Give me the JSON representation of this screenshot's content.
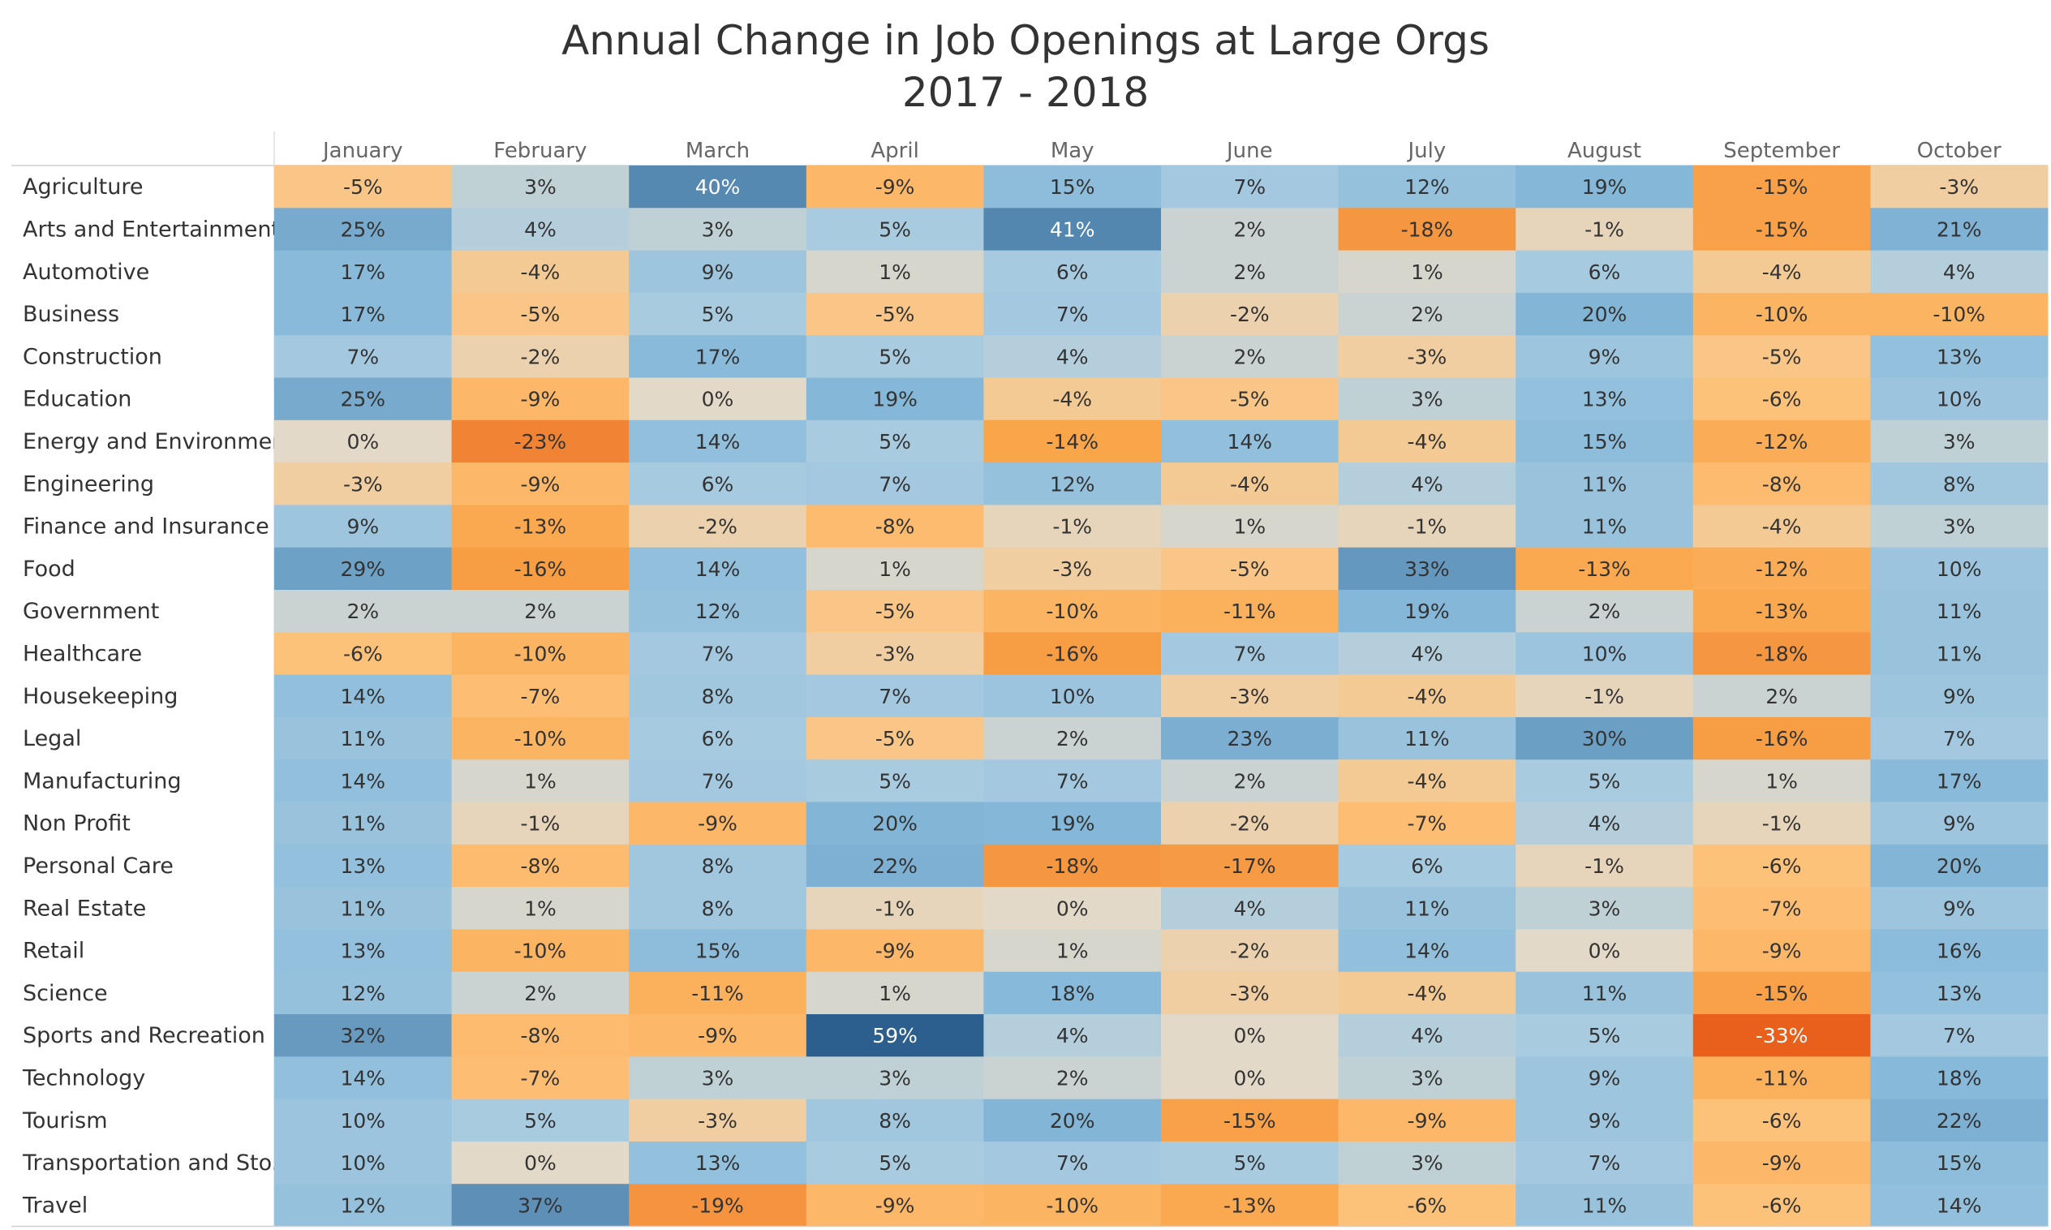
{
  "title": "Annual Change in Job Openings at Large Orgs",
  "subtitle": "2017 - 2018",
  "chart_data": {
    "type": "heatmap",
    "title": "Annual Change in Job Openings at Large Orgs",
    "subtitle": "2017 - 2018",
    "value_format": "percent",
    "color_scale": {
      "negative_strong": "#e8601c",
      "negative_mid": "#f9a54a",
      "negative_light": "#fdc27a",
      "neutral": "#e2d9c8",
      "positive_light": "#a9cbe0",
      "positive_mid": "#86b9da",
      "positive_strong": "#2d5f8e",
      "text_default": "#333333",
      "text_on_dark": "#ffffff"
    },
    "columns": [
      "January",
      "February",
      "March",
      "April",
      "May",
      "June",
      "July",
      "August",
      "September",
      "October"
    ],
    "rows": [
      {
        "name": "Agriculture",
        "values": [
          -5,
          3,
          40,
          -9,
          15,
          7,
          12,
          19,
          -15,
          -3
        ]
      },
      {
        "name": "Arts and Entertainment",
        "values": [
          25,
          4,
          3,
          5,
          41,
          2,
          -18,
          -1,
          -15,
          21
        ]
      },
      {
        "name": "Automotive",
        "values": [
          17,
          -4,
          9,
          1,
          6,
          2,
          1,
          6,
          -4,
          4
        ]
      },
      {
        "name": "Business",
        "values": [
          17,
          -5,
          5,
          -5,
          7,
          -2,
          2,
          20,
          -10,
          -10
        ]
      },
      {
        "name": "Construction",
        "values": [
          7,
          -2,
          17,
          5,
          4,
          2,
          -3,
          9,
          -5,
          13
        ]
      },
      {
        "name": "Education",
        "values": [
          25,
          -9,
          0,
          19,
          -4,
          -5,
          3,
          13,
          -6,
          10
        ]
      },
      {
        "name": "Energy and Environment",
        "values": [
          0,
          -23,
          14,
          5,
          -14,
          14,
          -4,
          15,
          -12,
          3
        ]
      },
      {
        "name": "Engineering",
        "values": [
          -3,
          -9,
          6,
          7,
          12,
          -4,
          4,
          11,
          -8,
          8
        ]
      },
      {
        "name": "Finance and Insurance",
        "values": [
          9,
          -13,
          -2,
          -8,
          -1,
          1,
          -1,
          11,
          -4,
          3
        ]
      },
      {
        "name": "Food",
        "values": [
          29,
          -16,
          14,
          1,
          -3,
          -5,
          33,
          -13,
          -12,
          10
        ]
      },
      {
        "name": "Government",
        "values": [
          2,
          2,
          12,
          -5,
          -10,
          -11,
          19,
          2,
          -13,
          11
        ]
      },
      {
        "name": "Healthcare",
        "values": [
          -6,
          -10,
          7,
          -3,
          -16,
          7,
          4,
          10,
          -18,
          11
        ]
      },
      {
        "name": "Housekeeping",
        "values": [
          14,
          -7,
          8,
          7,
          10,
          -3,
          -4,
          -1,
          2,
          9
        ]
      },
      {
        "name": "Legal",
        "values": [
          11,
          -10,
          6,
          -5,
          2,
          23,
          11,
          30,
          -16,
          7
        ]
      },
      {
        "name": "Manufacturing",
        "values": [
          14,
          1,
          7,
          5,
          7,
          2,
          -4,
          5,
          1,
          17
        ]
      },
      {
        "name": "Non Profit",
        "values": [
          11,
          -1,
          -9,
          20,
          19,
          -2,
          -7,
          4,
          -1,
          9
        ]
      },
      {
        "name": "Personal Care",
        "values": [
          13,
          -8,
          8,
          22,
          -18,
          -17,
          6,
          -1,
          -6,
          20
        ]
      },
      {
        "name": "Real Estate",
        "values": [
          11,
          1,
          8,
          -1,
          0,
          4,
          11,
          3,
          -7,
          9
        ]
      },
      {
        "name": "Retail",
        "values": [
          13,
          -10,
          15,
          -9,
          1,
          -2,
          14,
          0,
          -9,
          16
        ]
      },
      {
        "name": "Science",
        "values": [
          12,
          2,
          -11,
          1,
          18,
          -3,
          -4,
          11,
          -15,
          13
        ]
      },
      {
        "name": "Sports and Recreation",
        "values": [
          32,
          -8,
          -9,
          59,
          4,
          0,
          4,
          5,
          -33,
          7
        ]
      },
      {
        "name": "Technology",
        "values": [
          14,
          -7,
          3,
          3,
          2,
          0,
          3,
          9,
          -11,
          18
        ]
      },
      {
        "name": "Tourism",
        "values": [
          10,
          5,
          -3,
          8,
          20,
          -15,
          -9,
          9,
          -6,
          22
        ]
      },
      {
        "name": "Transportation and Sto..",
        "values": [
          10,
          0,
          13,
          5,
          7,
          5,
          3,
          7,
          -9,
          15
        ]
      },
      {
        "name": "Travel",
        "values": [
          12,
          37,
          -19,
          -9,
          -10,
          -13,
          -6,
          11,
          -6,
          14
        ]
      }
    ]
  }
}
